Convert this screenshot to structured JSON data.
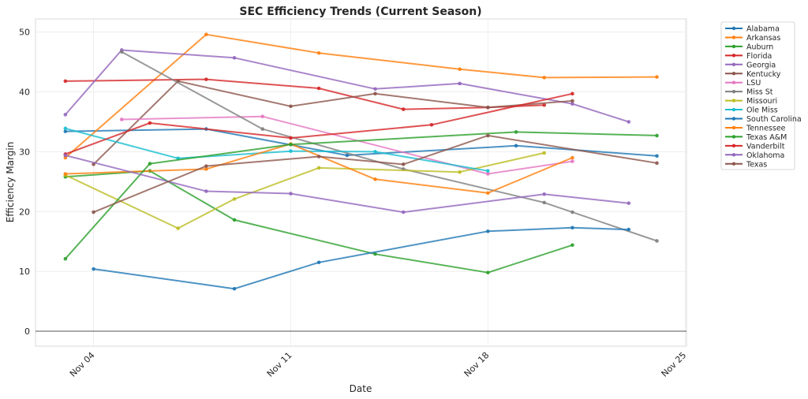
{
  "chart_data": {
    "type": "line",
    "title": "SEC Efficiency Trends (Current Season)",
    "xlabel": "Date",
    "ylabel": "Efficiency Margin",
    "x_ticks": [
      "Nov 04",
      "Nov 11",
      "Nov 18",
      "Nov 25"
    ],
    "x_tick_days": [
      4,
      11,
      18,
      25
    ],
    "xlim_days": [
      1.94,
      25.05
    ],
    "ylim": [
      -2.5,
      52.2
    ],
    "y_ticks": [
      0,
      10,
      20,
      30,
      40,
      50
    ],
    "grid": true,
    "zero_line": true,
    "legend_position": "outside-top-right",
    "series": [
      {
        "name": "Alabama",
        "color": "#1f77b4",
        "x": [
          3,
          8,
          13,
          19,
          24
        ],
        "values": [
          33.4,
          33.8,
          29.4,
          31.0,
          29.3
        ]
      },
      {
        "name": "Arkansas",
        "color": "#ff7f0e",
        "x": [
          3,
          8,
          12,
          17,
          20,
          24
        ],
        "values": [
          29.0,
          49.6,
          46.5,
          43.8,
          42.4,
          42.5
        ]
      },
      {
        "name": "Auburn",
        "color": "#2ca02c",
        "x": [
          3,
          6,
          9,
          14,
          18,
          21
        ],
        "values": [
          25.8,
          26.8,
          18.6,
          12.9,
          9.8,
          14.4
        ]
      },
      {
        "name": "Florida",
        "color": "#d62728",
        "x": [
          3,
          8,
          12,
          15,
          18,
          20
        ],
        "values": [
          41.8,
          42.1,
          40.6,
          37.1,
          37.4,
          37.8
        ]
      },
      {
        "name": "Georgia",
        "color": "#9467bd",
        "x": [
          3,
          5,
          9,
          14,
          17,
          21,
          23
        ],
        "values": [
          36.2,
          47.0,
          45.7,
          40.5,
          41.4,
          38.0,
          35.0
        ]
      },
      {
        "name": "Kentucky",
        "color": "#8c564b",
        "x": [
          4,
          7,
          11,
          14,
          18,
          21
        ],
        "values": [
          27.9,
          41.8,
          37.6,
          39.7,
          37.4,
          38.5
        ]
      },
      {
        "name": "LSU",
        "color": "#e377c2",
        "x": [
          5,
          10,
          18,
          21
        ],
        "values": [
          35.4,
          35.9,
          26.3,
          28.4
        ]
      },
      {
        "name": "Miss St",
        "color": "#7f7f7f",
        "x": [
          5,
          10,
          15,
          20,
          21,
          24
        ],
        "values": [
          46.7,
          33.8,
          27.1,
          21.5,
          19.9,
          15.1
        ]
      },
      {
        "name": "Missouri",
        "color": "#bcbd22",
        "x": [
          3,
          7,
          9,
          12,
          17,
          20
        ],
        "values": [
          26.1,
          17.2,
          22.1,
          27.3,
          26.6,
          29.8
        ]
      },
      {
        "name": "Ole Miss",
        "color": "#17becf",
        "x": [
          3,
          7,
          11,
          14,
          18
        ],
        "values": [
          33.9,
          28.9,
          30.1,
          30.0,
          26.8
        ]
      },
      {
        "name": "South Carolina",
        "color": "#1f77b4",
        "x": [
          4,
          9,
          12,
          18,
          21,
          23
        ],
        "values": [
          10.4,
          7.1,
          11.5,
          16.7,
          17.3,
          17.0
        ]
      },
      {
        "name": "Tennessee",
        "color": "#ff7f0e",
        "x": [
          3,
          8,
          11,
          14,
          18,
          21
        ],
        "values": [
          26.3,
          27.1,
          31.3,
          25.4,
          23.1,
          29.0
        ]
      },
      {
        "name": "Texas A&M",
        "color": "#2ca02c",
        "x": [
          3,
          6,
          11,
          19,
          24
        ],
        "values": [
          12.1,
          28.0,
          31.2,
          33.3,
          32.7
        ]
      },
      {
        "name": "Vanderbilt",
        "color": "#d62728",
        "x": [
          3,
          6,
          11,
          16,
          21
        ],
        "values": [
          29.6,
          34.8,
          32.3,
          34.5,
          39.7
        ]
      },
      {
        "name": "Oklahoma",
        "color": "#9467bd",
        "x": [
          3,
          8,
          11,
          15,
          20,
          23
        ],
        "values": [
          29.4,
          23.4,
          23.0,
          19.9,
          22.9,
          21.4
        ]
      },
      {
        "name": "Texas",
        "color": "#8c564b",
        "x": [
          4,
          8,
          12,
          15,
          18,
          24
        ],
        "values": [
          19.9,
          27.6,
          29.2,
          27.9,
          32.7,
          28.1
        ]
      }
    ]
  }
}
